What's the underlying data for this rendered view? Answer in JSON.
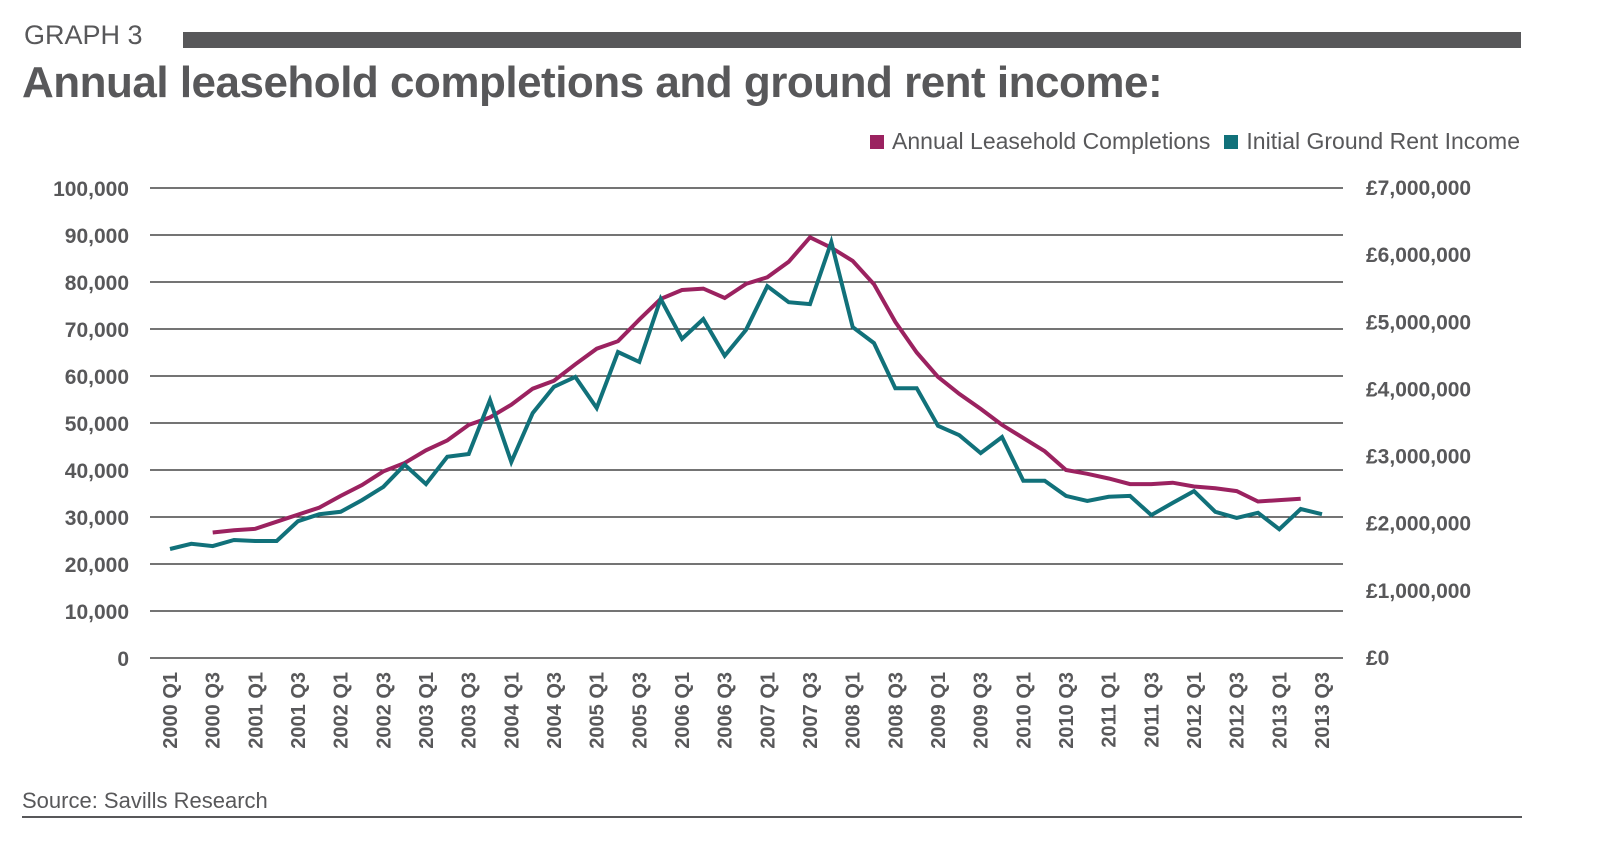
{
  "header": {
    "graph_label": "GRAPH 3",
    "title": "Annual leasehold completions and ground rent income:"
  },
  "footer": {
    "source": "Source: Savills Research"
  },
  "chart_data": {
    "type": "line",
    "title": "Annual leasehold completions and ground rent income:",
    "xlabel": "",
    "ylabel": "",
    "y2label": "",
    "grid": true,
    "legend_position": "top-right",
    "legend": [
      {
        "name": "Annual Leasehold Completions",
        "color": "#9b2260"
      },
      {
        "name": "Initial Ground Rent Income",
        "color": "#11717a"
      }
    ],
    "x": [
      "2000 Q1",
      "2000 Q2",
      "2000 Q3",
      "2000 Q4",
      "2001 Q1",
      "2001 Q2",
      "2001 Q3",
      "2001 Q4",
      "2002 Q1",
      "2002 Q2",
      "2002 Q3",
      "2002 Q4",
      "2003 Q1",
      "2003 Q2",
      "2003 Q3",
      "2003 Q4",
      "2004 Q1",
      "2004 Q2",
      "2004 Q3",
      "2004 Q4",
      "2005 Q1",
      "2005 Q2",
      "2005 Q3",
      "2005 Q4",
      "2006 Q1",
      "2006 Q2",
      "2006 Q3",
      "2006 Q4",
      "2007 Q1",
      "2007 Q2",
      "2007 Q3",
      "2007 Q4",
      "2008 Q1",
      "2008 Q2",
      "2008 Q3",
      "2008 Q4",
      "2009 Q1",
      "2009 Q2",
      "2009 Q3",
      "2009 Q4",
      "2010 Q1",
      "2010 Q2",
      "2010 Q3",
      "2010 Q4",
      "2011 Q1",
      "2011 Q2",
      "2011 Q3",
      "2011 Q4",
      "2012 Q1",
      "2012 Q2",
      "2012 Q3",
      "2012 Q4",
      "2013 Q1",
      "2013 Q2",
      "2013 Q3"
    ],
    "x_tick_labels": [
      "2000 Q1",
      "2000 Q3",
      "2001 Q1",
      "2001 Q3",
      "2002 Q1",
      "2002 Q3",
      "2003 Q1",
      "2003 Q3",
      "2004 Q1",
      "2004 Q3",
      "2005 Q1",
      "2005 Q3",
      "2006 Q1",
      "2006 Q3",
      "2007 Q1",
      "2007 Q3",
      "2008 Q1",
      "2008 Q3",
      "2009 Q1",
      "2009 Q3",
      "2010 Q1",
      "2010 Q3",
      "2011 Q1",
      "2011 Q3",
      "2012 Q1",
      "2012 Q3",
      "2013 Q1",
      "2013 Q3"
    ],
    "y_left": {
      "range": [
        0,
        100000
      ],
      "tick_labels": [
        "0",
        "10,000",
        "20,000",
        "30,000",
        "40,000",
        "50,000",
        "60,000",
        "70,000",
        "80,000",
        "90,000",
        "100,000"
      ],
      "tick_values": [
        0,
        10000,
        20000,
        30000,
        40000,
        50000,
        60000,
        70000,
        80000,
        90000,
        100000
      ]
    },
    "y_right": {
      "range": [
        0,
        7000000
      ],
      "tick_labels": [
        "£0",
        "£1,000,000",
        "£2,000,000",
        "£3,000,000",
        "£4,000,000",
        "£5,000,000",
        "£6,000,000",
        "£7,000,000"
      ],
      "tick_values": [
        0,
        1000000,
        2000000,
        3000000,
        4000000,
        5000000,
        6000000,
        7000000
      ]
    },
    "series": [
      {
        "name": "Annual Leasehold Completions",
        "axis": "left",
        "color": "#9b2260",
        "values": [
          null,
          null,
          26700,
          27200,
          27500,
          29000,
          30500,
          32000,
          34500,
          36800,
          39700,
          41500,
          44200,
          46300,
          49600,
          51200,
          53900,
          57300,
          59000,
          62500,
          65800,
          67400,
          72000,
          76400,
          78300,
          78600,
          76600,
          79600,
          81000,
          84300,
          89500,
          87300,
          84500,
          79500,
          71500,
          65000,
          59800,
          56200,
          53000,
          49600,
          46800,
          44000,
          40000,
          39200,
          38200,
          37000,
          37000,
          37300,
          36500,
          36100,
          35500,
          33300,
          33600,
          33900,
          null
        ]
      },
      {
        "name": "Initial Ground Rent Income",
        "axis": "right",
        "color": "#11717a",
        "values": [
          1624000,
          1701000,
          1666000,
          1757000,
          1743000,
          1743000,
          2037000,
          2142000,
          2177000,
          2352000,
          2548000,
          2877000,
          2590000,
          2996000,
          3038000,
          3843000,
          2919000,
          3647000,
          4039000,
          4186000,
          3724000,
          4557000,
          4410000,
          5348000,
          4753000,
          5047000,
          4501000,
          4886000,
          5537000,
          5299000,
          5271000,
          6195000,
          4928000,
          4690000,
          4018000,
          4018000,
          3458000,
          3318000,
          3052000,
          3290000,
          2639000,
          2639000,
          2415000,
          2338000,
          2401000,
          2415000,
          2128000,
          2310000,
          2485000,
          2177000,
          2086000,
          2163000,
          1918000,
          2219000,
          2142000
        ]
      }
    ]
  }
}
